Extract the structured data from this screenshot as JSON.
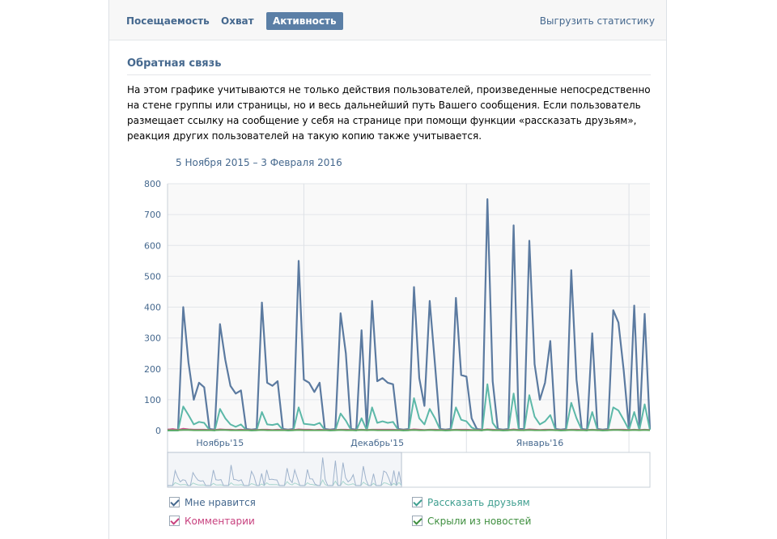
{
  "tabs": [
    {
      "label": "Посещаемость",
      "active": false
    },
    {
      "label": "Охват",
      "active": false
    },
    {
      "label": "Активность",
      "active": true
    }
  ],
  "export_label": "Выгрузить статистику",
  "section": {
    "title": "Обратная связь",
    "description": "На этом графике учитываются не только действия пользователей, произведенные непосредственно на стене группы или страницы, но и весь дальнейший путь Вашего сообщения. Если пользователь размещает ссылку на сообщение у себя на странице при помощи функции «рассказать друзьям», реакция других пользователей на такую копию также учитывается."
  },
  "date_range": "5 Ноября 2015 – 3 Февраля 2016",
  "colors": {
    "likes": "#5b7aa0",
    "shares": "#5cb8a8",
    "comments": "#d04e8c",
    "hidden": "#5fa85f",
    "accent": "#45688e"
  },
  "legend": [
    {
      "label": "Мне нравится",
      "color": "#45688e",
      "checked": true
    },
    {
      "label": "Рассказать друзьям",
      "color": "#3e9e8f",
      "checked": true
    },
    {
      "label": "Комментарии",
      "color": "#c8427f",
      "checked": true
    },
    {
      "label": "Скрыли из новостей",
      "color": "#3f8f3f",
      "checked": true
    }
  ],
  "chart_data": {
    "type": "line",
    "xlabel": "",
    "ylabel": "",
    "ylim": [
      0,
      800
    ],
    "yticks": [
      0,
      100,
      200,
      300,
      400,
      500,
      600,
      700,
      800
    ],
    "x_start": "5 Ноября 2015",
    "x_end": "3 Февраля 2016",
    "month_labels": [
      {
        "label": "Ноябрь'15",
        "day": 10
      },
      {
        "label": "Декабрь'15",
        "day": 40
      },
      {
        "label": "Январь'16",
        "day": 71
      }
    ],
    "month_boundaries": [
      26,
      57,
      88
    ],
    "grid": true,
    "legend_position": "bottom",
    "series": [
      {
        "name": "Мне нравится",
        "color": "#5b7aa0",
        "values": [
          3,
          2,
          3,
          400,
          220,
          100,
          155,
          140,
          5,
          3,
          345,
          230,
          145,
          120,
          130,
          5,
          3,
          5,
          415,
          155,
          145,
          160,
          5,
          3,
          5,
          550,
          165,
          155,
          125,
          155,
          5,
          3,
          5,
          380,
          250,
          5,
          3,
          325,
          5,
          420,
          160,
          170,
          155,
          150,
          5,
          3,
          5,
          465,
          170,
          80,
          420,
          215,
          5,
          3,
          5,
          430,
          180,
          175,
          40,
          5,
          3,
          750,
          160,
          5,
          3,
          5,
          665,
          5,
          5,
          615,
          215,
          100,
          155,
          290,
          5,
          3,
          5,
          520,
          165,
          5,
          3,
          315,
          5,
          3,
          5,
          390,
          350,
          195,
          5,
          405,
          5,
          378,
          5
        ]
      },
      {
        "name": "Рассказать друзьям",
        "color": "#5cb8a8",
        "values": [
          0,
          0,
          0,
          78,
          50,
          20,
          28,
          25,
          2,
          0,
          70,
          40,
          20,
          12,
          20,
          2,
          0,
          1,
          60,
          20,
          18,
          22,
          2,
          0,
          1,
          75,
          22,
          20,
          18,
          25,
          2,
          0,
          1,
          55,
          32,
          2,
          0,
          40,
          1,
          75,
          25,
          30,
          25,
          28,
          2,
          0,
          1,
          105,
          40,
          20,
          70,
          40,
          2,
          0,
          1,
          75,
          35,
          30,
          10,
          2,
          0,
          150,
          25,
          2,
          0,
          1,
          120,
          2,
          1,
          115,
          45,
          20,
          30,
          50,
          2,
          0,
          1,
          90,
          40,
          2,
          0,
          60,
          2,
          0,
          1,
          75,
          65,
          35,
          2,
          60,
          2,
          85,
          2
        ]
      },
      {
        "name": "Комментарии",
        "color": "#d04e8c",
        "values": [
          3,
          5,
          2,
          6,
          4,
          3,
          3,
          3,
          2,
          2,
          4,
          3,
          3,
          2,
          3,
          2,
          2,
          2,
          3,
          3,
          2,
          3,
          2,
          2,
          2,
          4,
          3,
          3,
          2,
          3,
          2,
          2,
          2,
          3,
          3,
          2,
          2,
          3,
          2,
          3,
          3,
          3,
          3,
          3,
          2,
          2,
          2,
          4,
          3,
          2,
          3,
          3,
          2,
          2,
          2,
          3,
          3,
          3,
          2,
          2,
          2,
          4,
          3,
          2,
          2,
          2,
          4,
          2,
          2,
          4,
          3,
          2,
          3,
          3,
          2,
          2,
          2,
          3,
          3,
          2,
          2,
          3,
          2,
          2,
          2,
          3,
          3,
          3,
          2,
          3,
          2,
          3,
          2
        ]
      },
      {
        "name": "Скрыли из новостей",
        "color": "#5fa85f",
        "values": [
          1,
          1,
          1,
          2,
          2,
          1,
          1,
          1,
          1,
          1,
          2,
          2,
          1,
          1,
          1,
          1,
          1,
          1,
          2,
          1,
          1,
          1,
          1,
          1,
          1,
          2,
          1,
          1,
          1,
          1,
          1,
          1,
          1,
          2,
          1,
          1,
          1,
          2,
          1,
          2,
          1,
          1,
          1,
          1,
          1,
          1,
          1,
          2,
          1,
          1,
          2,
          1,
          1,
          1,
          1,
          2,
          1,
          1,
          1,
          1,
          1,
          3,
          1,
          1,
          1,
          1,
          2,
          1,
          1,
          2,
          1,
          1,
          1,
          2,
          1,
          1,
          1,
          2,
          1,
          1,
          1,
          2,
          1,
          1,
          1,
          2,
          2,
          1,
          1,
          2,
          1,
          2,
          1
        ]
      }
    ]
  }
}
